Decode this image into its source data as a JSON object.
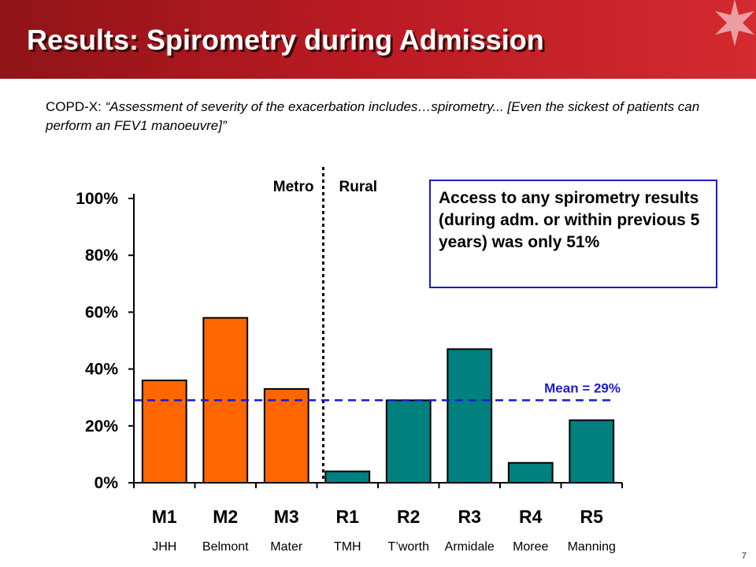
{
  "header": {
    "title": "Results: Spirometry during Admission",
    "colors": {
      "bar_start": "#8f1418",
      "bar_end": "#d42a30"
    },
    "emblem_icon": "waratah-flower-icon"
  },
  "quote": {
    "prefix": "COPD-X: ",
    "text": "“Assessment of severity of the exacerbation includes…spirometry...  [Even the sickest of patients can perform an FEV1 manoeuvre]”"
  },
  "callout": {
    "text": "Access to any spirometry results (during adm. or within previous 5 years) was only 51%"
  },
  "page_number": "7",
  "chart_data": {
    "type": "bar",
    "categories": [
      "M1",
      "M2",
      "M3",
      "R1",
      "R2",
      "R3",
      "R4",
      "R5"
    ],
    "hospitals": [
      "JHH",
      "Belmont",
      "Mater",
      "TMH",
      "T’worth",
      "Armidale",
      "Moree",
      "Manning"
    ],
    "values": [
      36,
      58,
      33,
      4,
      29,
      47,
      7,
      22
    ],
    "groups": [
      {
        "name": "Metro",
        "categories": [
          "M1",
          "M2",
          "M3"
        ],
        "color": "#ff6600"
      },
      {
        "name": "Rural",
        "categories": [
          "R1",
          "R2",
          "R3",
          "R4",
          "R5"
        ],
        "color": "#00807f"
      }
    ],
    "yticks": [
      "0%",
      "20%",
      "40%",
      "60%",
      "80%",
      "100%"
    ],
    "ylim": [
      0,
      100
    ],
    "mean": {
      "value": 29,
      "label": "Mean = 29%",
      "color": "#1a1ad6"
    },
    "title": "",
    "xlabel": "",
    "ylabel": "",
    "grid": false
  }
}
